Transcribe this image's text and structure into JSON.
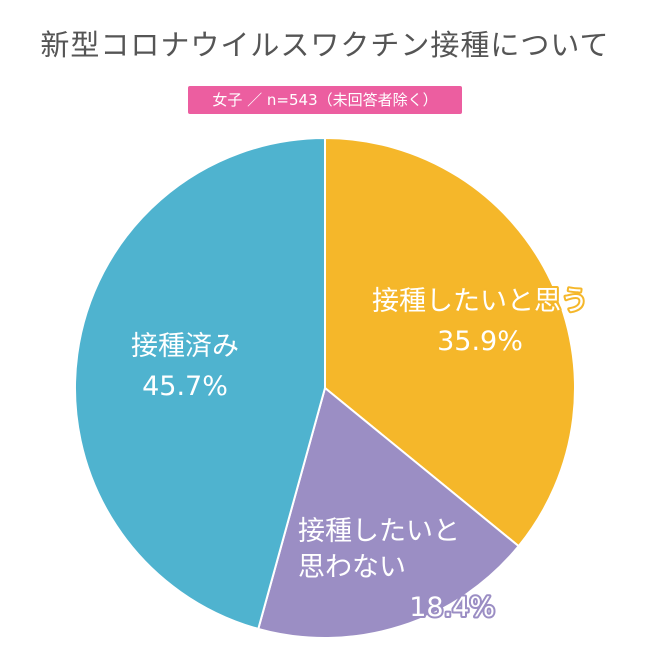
{
  "chart_data": {
    "type": "pie",
    "title": "新型コロナウイルスワクチン接種について",
    "subtitle": "女子 ／ n=543（未回答者除く）",
    "slices": [
      {
        "label_lines": [
          "接種したいと思う"
        ],
        "value_label": "35.9%",
        "value": 35.9,
        "color": "#f5b72a"
      },
      {
        "label_lines": [
          "接種したいと",
          "思わない"
        ],
        "value_label": "18.4%",
        "value": 18.4,
        "color": "#9b8ec4"
      },
      {
        "label_lines": [
          "接種済み"
        ],
        "value_label": "45.7%",
        "value": 45.7,
        "color": "#4fb3cf"
      }
    ]
  }
}
